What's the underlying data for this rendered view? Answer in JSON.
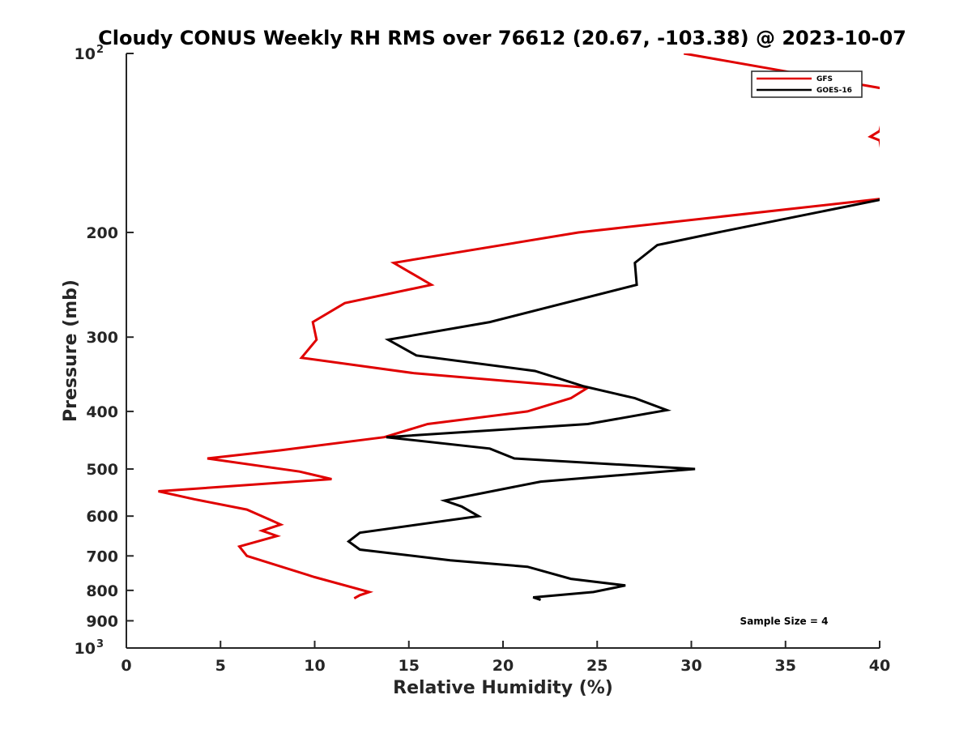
{
  "chart_data": {
    "type": "line",
    "title": "Cloudy CONUS Weekly RH RMS over 76612 (20.67, -103.38) @ 2023-10-07",
    "xlabel": "Relative Humidity (%)",
    "ylabel": "Pressure (mb)",
    "xlim": [
      0,
      40
    ],
    "ylim": [
      100,
      1000
    ],
    "yscale": "log",
    "y_reversed": true,
    "x_ticks": [
      {
        "value": 0,
        "label": "0"
      },
      {
        "value": 5,
        "label": "5"
      },
      {
        "value": 10,
        "label": "10"
      },
      {
        "value": 15,
        "label": "15"
      },
      {
        "value": 20,
        "label": "20"
      },
      {
        "value": 25,
        "label": "25"
      },
      {
        "value": 30,
        "label": "30"
      },
      {
        "value": 35,
        "label": "35"
      },
      {
        "value": 40,
        "label": "40"
      }
    ],
    "y_ticks": [
      {
        "value": 100,
        "base": "10",
        "exp": "2"
      },
      {
        "value": 200,
        "label": "200"
      },
      {
        "value": 300,
        "label": "300"
      },
      {
        "value": 400,
        "label": "400"
      },
      {
        "value": 500,
        "label": "500"
      },
      {
        "value": 600,
        "label": "600"
      },
      {
        "value": 700,
        "label": "700"
      },
      {
        "value": 800,
        "label": "800"
      },
      {
        "value": 900,
        "label": "900"
      },
      {
        "value": 1000,
        "base": "10",
        "exp": "3"
      }
    ],
    "legend_position": "top-right",
    "series": [
      {
        "name": "GFS",
        "color": "#e00000",
        "points": [
          [
            29.6,
            100
          ],
          [
            40.5,
            115
          ],
          [
            40.0,
            135
          ],
          [
            39.5,
            138
          ],
          [
            40.0,
            140
          ],
          [
            40.5,
            175
          ],
          [
            24.0,
            200
          ],
          [
            14.2,
            225
          ],
          [
            16.2,
            245
          ],
          [
            11.6,
            263
          ],
          [
            9.9,
            283
          ],
          [
            10.1,
            303
          ],
          [
            9.3,
            325
          ],
          [
            15.3,
            345
          ],
          [
            24.5,
            365
          ],
          [
            23.6,
            380
          ],
          [
            21.3,
            400
          ],
          [
            16.0,
            420
          ],
          [
            13.7,
            442
          ],
          [
            8.2,
            465
          ],
          [
            4.3,
            480
          ],
          [
            9.2,
            505
          ],
          [
            10.9,
            520
          ],
          [
            1.7,
            545
          ],
          [
            3.6,
            562
          ],
          [
            6.4,
            585
          ],
          [
            7.6,
            608
          ],
          [
            8.2,
            620
          ],
          [
            7.2,
            635
          ],
          [
            8.0,
            648
          ],
          [
            6.0,
            675
          ],
          [
            6.4,
            700
          ],
          [
            10.0,
            760
          ],
          [
            12.9,
            805
          ],
          [
            12.4,
            815
          ],
          [
            12.1,
            825
          ]
        ]
      },
      {
        "name": "GOES-16",
        "color": "#000000",
        "points": [
          [
            40.5,
            175
          ],
          [
            31.4,
            200
          ],
          [
            28.2,
            210
          ],
          [
            27.0,
            225
          ],
          [
            27.1,
            245
          ],
          [
            19.3,
            283
          ],
          [
            13.9,
            303
          ],
          [
            15.4,
            322
          ],
          [
            21.7,
            342
          ],
          [
            24.3,
            363
          ],
          [
            27.0,
            380
          ],
          [
            28.7,
            398
          ],
          [
            24.5,
            420
          ],
          [
            13.8,
            442
          ],
          [
            19.3,
            462
          ],
          [
            20.6,
            480
          ],
          [
            30.2,
            500
          ],
          [
            22.0,
            525
          ],
          [
            16.9,
            565
          ],
          [
            17.8,
            578
          ],
          [
            18.7,
            600
          ],
          [
            12.4,
            640
          ],
          [
            11.8,
            662
          ],
          [
            12.4,
            683
          ],
          [
            17.2,
            712
          ],
          [
            21.3,
            730
          ],
          [
            23.6,
            765
          ],
          [
            26.5,
            785
          ],
          [
            24.8,
            805
          ],
          [
            21.6,
            822
          ],
          [
            22.0,
            830
          ]
        ]
      }
    ],
    "annotations": [
      {
        "text": "Sample Size = 4",
        "x": 35,
        "y": 900
      }
    ]
  }
}
